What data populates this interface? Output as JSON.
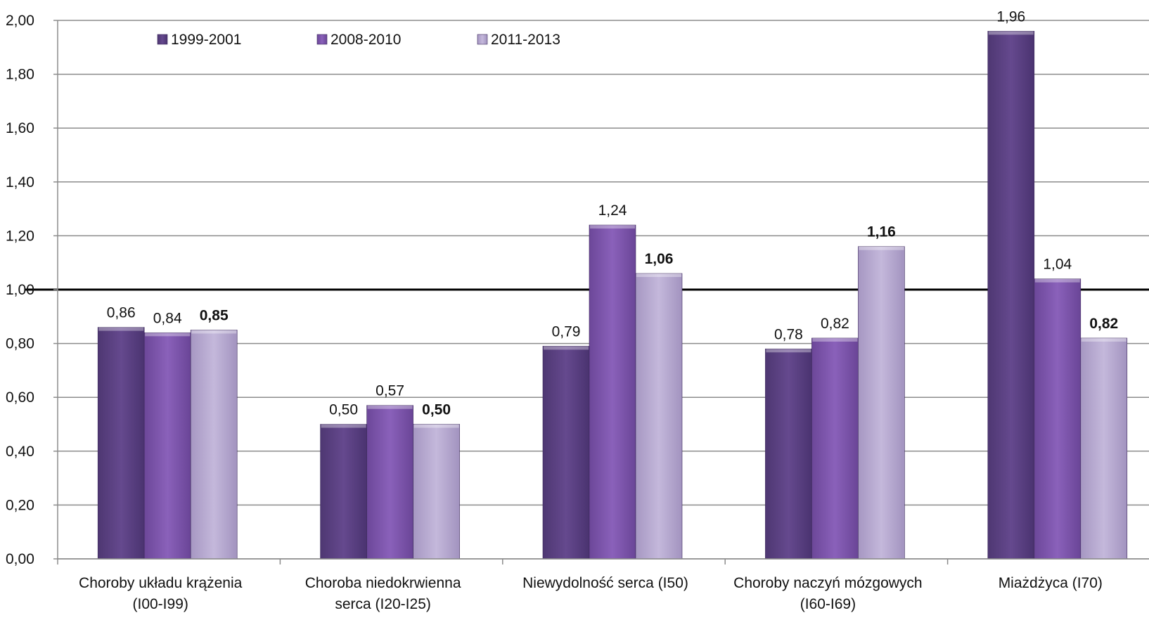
{
  "chart_data": {
    "type": "bar",
    "title": "",
    "xlabel": "",
    "ylabel": "",
    "ylim": [
      0,
      2
    ],
    "ytick_step": 0.2,
    "yticks": [
      "0,00",
      "0,20",
      "0,40",
      "0,60",
      "0,80",
      "1,00",
      "1,20",
      "1,40",
      "1,60",
      "1,80",
      "2,00"
    ],
    "grid": true,
    "reference_line": 1.0,
    "legend_position": "top-left",
    "categories": [
      [
        "Choroby układu krążenia",
        "(I00-I99)"
      ],
      [
        "Choroba niedokrwienna",
        "serca (I20-I25)"
      ],
      [
        "Niewydolność serca (I50)"
      ],
      [
        "Choroby naczyń mózgowych",
        "(I60-I69)"
      ],
      [
        "Miażdżyca (I70)"
      ]
    ],
    "series": [
      {
        "name": "1999-2001",
        "color": "#5e4585",
        "label_bold": false,
        "values": [
          0.86,
          0.5,
          0.79,
          0.78,
          1.96
        ],
        "labels": [
          "0,86",
          "0,50",
          "0,79",
          "0,78",
          "1,96"
        ]
      },
      {
        "name": "2008-2010",
        "color": "#7e55ad",
        "label_bold": false,
        "values": [
          0.84,
          0.57,
          1.24,
          0.82,
          1.04
        ],
        "labels": [
          "0,84",
          "0,57",
          "1,24",
          "0,82",
          "1,04"
        ]
      },
      {
        "name": "2011-2013",
        "color": "#b4a6cf",
        "label_bold": true,
        "values": [
          0.85,
          0.5,
          1.06,
          1.16,
          0.82
        ],
        "labels": [
          "0,85",
          "0,50",
          "1,06",
          "1,16",
          "0,82"
        ]
      }
    ]
  }
}
